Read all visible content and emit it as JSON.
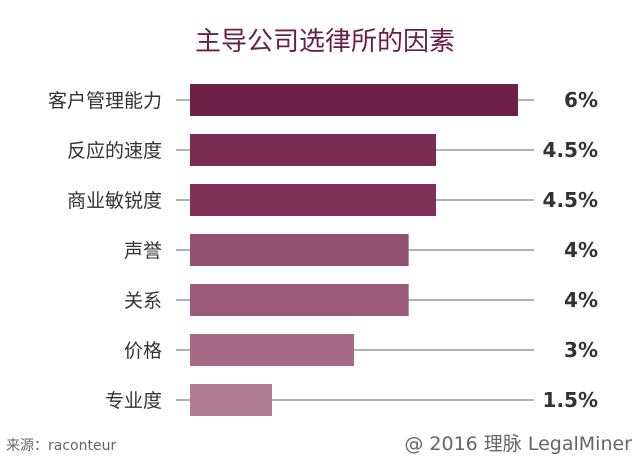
{
  "chart_data": {
    "type": "bar",
    "orientation": "horizontal",
    "title": "主导公司选律所的因素",
    "categories": [
      "客户管理能力",
      "反应的速度",
      "商业敏锐度",
      "声誉",
      "关系",
      "价格",
      "专业度"
    ],
    "values": [
      6,
      4.5,
      4.5,
      4,
      4,
      3,
      1.5
    ],
    "value_labels": [
      "6%",
      "4.5%",
      "4.5%",
      "4%",
      "4%",
      "3%",
      "1.5%"
    ],
    "unit": "%",
    "xlim": [
      0,
      6
    ],
    "grid": false,
    "bar_colors": [
      "#6d1f47",
      "#792b52",
      "#7f3157",
      "#94506f",
      "#9a5a78",
      "#a66a85",
      "#b07d93"
    ]
  },
  "footer": {
    "source": "来源：raconteur",
    "credit": "@ 2016 理脉 LegalMiner"
  }
}
